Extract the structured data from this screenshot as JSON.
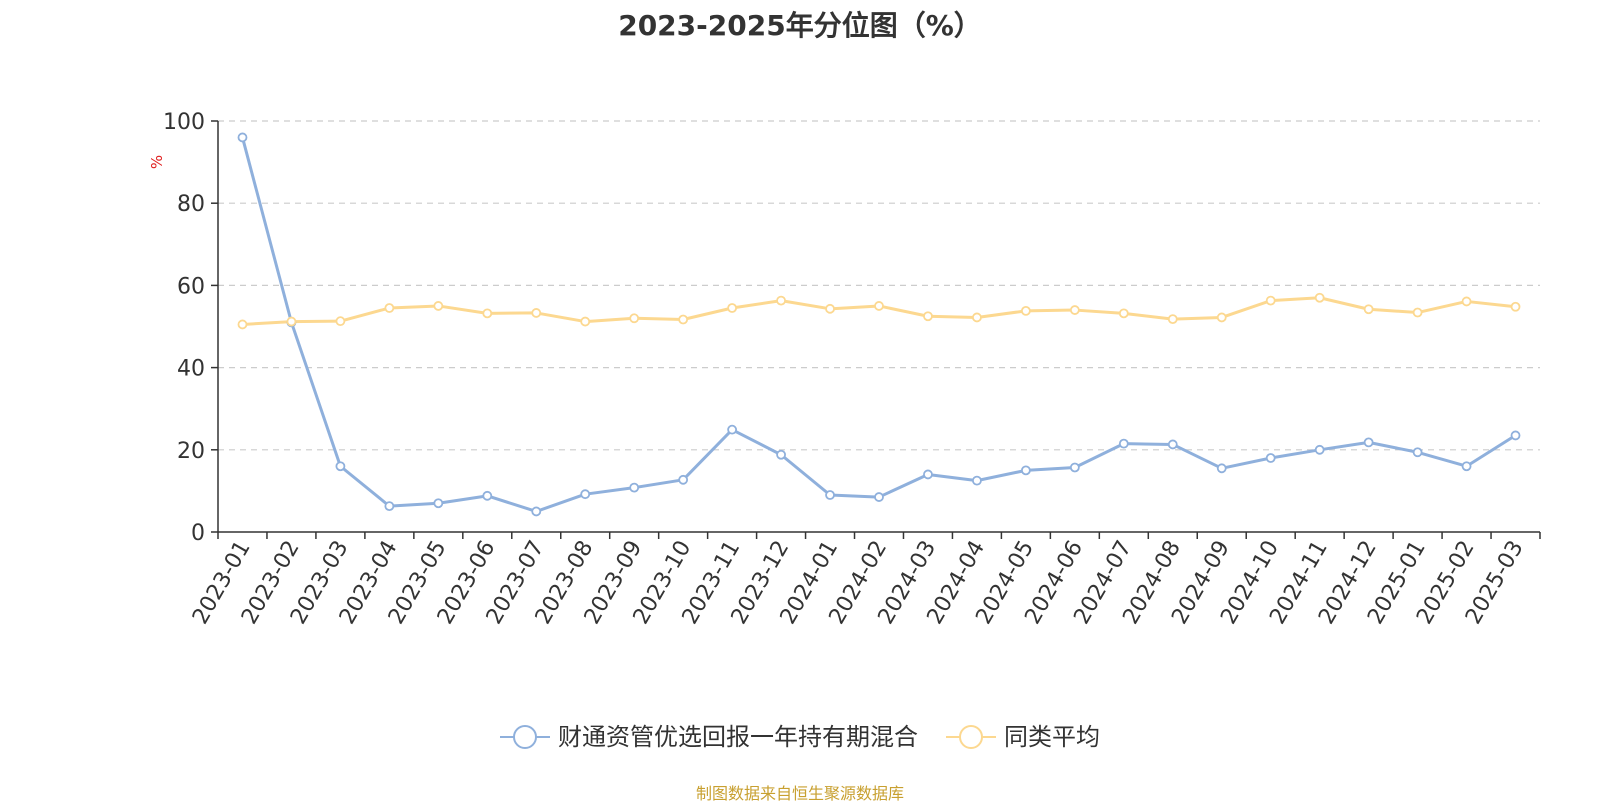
{
  "source_note": "制图数据来自恒生聚源数据库",
  "chart_data": {
    "type": "line",
    "title": "2023-2025年分位图（%）",
    "ylabel": "%",
    "xlabel": "",
    "ylim": [
      0,
      100
    ],
    "yticks": [
      0,
      20,
      40,
      60,
      80,
      100
    ],
    "grid": true,
    "legend_position": "bottom-center",
    "categories": [
      "2023-01",
      "2023-02",
      "2023-03",
      "2023-04",
      "2023-05",
      "2023-06",
      "2023-07",
      "2023-08",
      "2023-09",
      "2023-10",
      "2023-11",
      "2023-12",
      "2024-01",
      "2024-02",
      "2024-03",
      "2024-04",
      "2024-05",
      "2024-06",
      "2024-07",
      "2024-08",
      "2024-09",
      "2024-10",
      "2024-11",
      "2024-12",
      "2025-01",
      "2025-02",
      "2025-03"
    ],
    "series": [
      {
        "name": "财通资管优选回报一年持有期混合",
        "color": "#8fb0dc",
        "values": [
          96,
          51,
          16,
          6.3,
          7,
          8.8,
          5,
          9.2,
          10.8,
          12.7,
          24.9,
          18.8,
          9,
          8.5,
          14,
          12.5,
          15,
          15.7,
          21.5,
          21.3,
          15.5,
          18,
          20,
          21.8,
          19.4,
          16,
          23.5
        ]
      },
      {
        "name": "同类平均",
        "color": "#fcd890",
        "values": [
          50.5,
          51.2,
          51.3,
          54.5,
          55,
          53.2,
          53.3,
          51.2,
          52,
          51.7,
          54.5,
          56.3,
          54.3,
          55,
          52.5,
          52.2,
          53.8,
          54,
          53.2,
          51.8,
          52.2,
          56.3,
          57,
          54.2,
          53.4,
          56.1,
          54.8
        ]
      }
    ]
  }
}
